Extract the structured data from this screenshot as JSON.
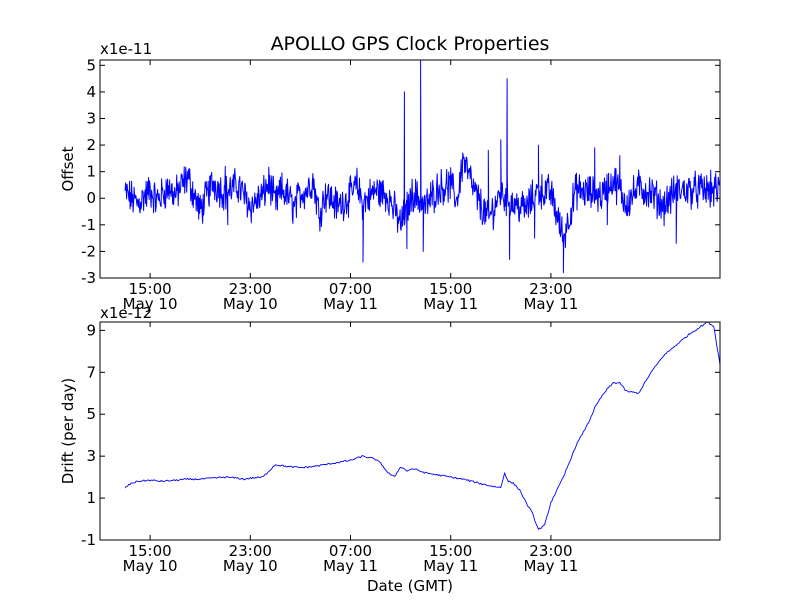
{
  "chart_data": {
    "title": "APOLLO GPS Clock Properties",
    "series_color": "#0000ff",
    "x_tick_labels": [
      {
        "time": "15:00",
        "date": "May 10"
      },
      {
        "time": "23:00",
        "date": "May 10"
      },
      {
        "time": "07:00",
        "date": "May 11"
      },
      {
        "time": "15:00",
        "date": "May 11"
      },
      {
        "time": "23:00",
        "date": "May 11"
      }
    ],
    "xlabel": "Date (GMT)",
    "panels": [
      {
        "type": "line",
        "ylabel": "Offset",
        "scale_label": "x1e-11",
        "ylim": [
          -3,
          5.2
        ],
        "yticks": [
          5,
          4,
          3,
          2,
          1,
          0,
          -1,
          -2,
          -3
        ],
        "ytick_labels": [
          "5",
          "4",
          "3",
          "2",
          "1",
          "0",
          "-1",
          "-2",
          "-3"
        ],
        "x_hours": [
          0,
          1,
          2,
          2.5,
          3.5,
          4,
          5,
          6,
          7,
          8,
          9,
          10,
          11,
          11.5,
          12,
          12.5,
          13,
          13.5,
          14,
          14.5,
          15,
          15.5,
          16,
          17,
          18,
          18.5,
          19,
          20,
          21,
          22,
          23,
          24,
          25,
          26,
          26.5,
          27,
          28,
          29,
          30,
          31,
          32,
          33,
          34,
          35,
          36,
          37,
          38,
          39,
          40,
          41,
          42,
          43,
          44
        ],
        "values": [
          0.2,
          -0.2,
          0.3,
          -0.1,
          0.4,
          0.1,
          0.8,
          -0.5,
          0.6,
          0.2,
          0.5,
          -0.3,
          0.1,
          0.6,
          -0.2,
          0.3,
          0.1,
          -0.4,
          0.2,
          0.3,
          0.7,
          -0.6,
          0.2,
          -0.3,
          0.1,
          0.5,
          -0.2,
          0.3,
          0.1,
          -1.0,
          0.2,
          -0.3,
          0.4,
          0.5,
          -0.1,
          1.5,
          0.1,
          -0.8,
          0.2,
          -0.2,
          -0.4,
          0.3,
          0.2,
          -1.5,
          0.3,
          0.2,
          0.1,
          0.7,
          -0.2,
          0.4,
          0.2,
          -0.3,
          0.3
        ],
        "peaks": [
          {
            "x_hour": 8,
            "value": 1.2
          },
          {
            "x_hour": 8.2,
            "value": -1.0
          },
          {
            "x_hour": 19,
            "value": -2.4
          },
          {
            "x_hour": 22.3,
            "value": 4.0
          },
          {
            "x_hour": 22.5,
            "value": -1.9
          },
          {
            "x_hour": 23.6,
            "value": 5.2
          },
          {
            "x_hour": 23.8,
            "value": -2.0
          },
          {
            "x_hour": 29,
            "value": 1.8
          },
          {
            "x_hour": 30,
            "value": 2.2
          },
          {
            "x_hour": 30.5,
            "value": 4.5
          },
          {
            "x_hour": 30.7,
            "value": -2.3
          },
          {
            "x_hour": 33,
            "value": 2.0
          },
          {
            "x_hour": 32.7,
            "value": -1.5
          },
          {
            "x_hour": 35,
            "value": -2.8
          },
          {
            "x_hour": 37.5,
            "value": 1.9
          },
          {
            "x_hour": 38.5,
            "value": -1.0
          },
          {
            "x_hour": 39.5,
            "value": 1.6
          },
          {
            "x_hour": 44,
            "value": -1.7
          }
        ]
      },
      {
        "type": "line",
        "ylabel": "Drift (per day)",
        "scale_label": "x1e-12",
        "ylim": [
          -1,
          9.4
        ],
        "yticks": [
          9,
          7,
          5,
          3,
          1,
          -1
        ],
        "ytick_labels": [
          "9",
          "7",
          "5",
          "3",
          "1",
          "-1"
        ],
        "x_hours": [
          0,
          0.5,
          1,
          2,
          3,
          4,
          5,
          6,
          7,
          8,
          9,
          9.5,
          10,
          11,
          12,
          13,
          14,
          15,
          16,
          17,
          18,
          19,
          20,
          20.5,
          21,
          21.5,
          22,
          22.5,
          23,
          23.5,
          24,
          25,
          26,
          27,
          28,
          29,
          30,
          30.3,
          30.6,
          31,
          31.5,
          32,
          32.5,
          33,
          33.5,
          34,
          35,
          36,
          37,
          37.5,
          38,
          38.5,
          39,
          39.5,
          40,
          41,
          42,
          43,
          44,
          45,
          45.5,
          46,
          46.5,
          47,
          47.5
        ],
        "values": [
          1.5,
          1.7,
          1.8,
          1.85,
          1.8,
          1.85,
          1.9,
          1.9,
          1.95,
          2.0,
          1.95,
          1.9,
          1.95,
          2.0,
          2.6,
          2.5,
          2.45,
          2.5,
          2.6,
          2.7,
          2.8,
          3.0,
          2.85,
          2.6,
          2.2,
          2.0,
          2.5,
          2.3,
          2.4,
          2.3,
          2.2,
          2.1,
          2.0,
          1.9,
          1.75,
          1.6,
          1.5,
          2.2,
          1.8,
          1.7,
          1.4,
          0.8,
          0.3,
          -0.5,
          -0.3,
          0.8,
          2.0,
          3.5,
          4.6,
          5.3,
          5.8,
          6.2,
          6.5,
          6.5,
          6.1,
          6.0,
          7.0,
          7.8,
          8.3,
          8.8,
          9.0,
          9.2,
          9.4,
          9.2,
          7.4
        ]
      }
    ]
  }
}
